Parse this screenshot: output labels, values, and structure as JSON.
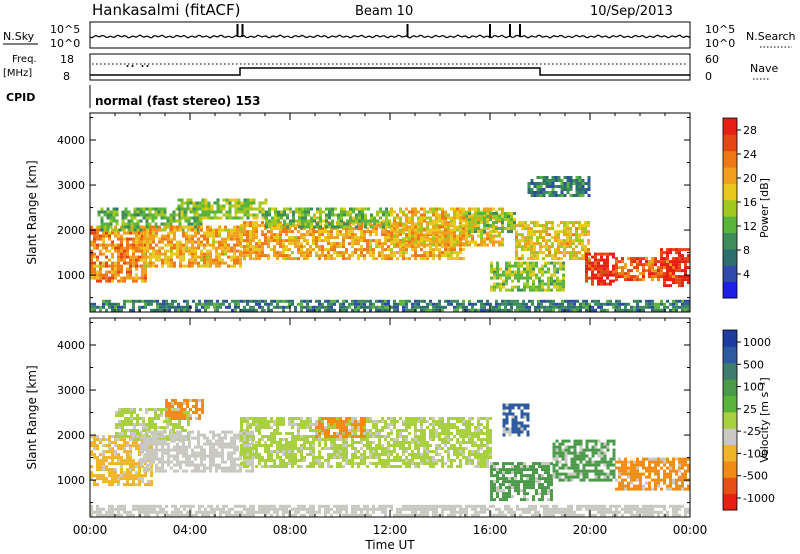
{
  "header": {
    "station": "Hankasalmi (fitACF)",
    "beam": "Beam 10",
    "date": "10/Sep/2013"
  },
  "status_panels": {
    "nsky_label": "N.Sky",
    "nsearch_label": "N.Search",
    "noise_ticks_left": [
      "10^5",
      "10^0"
    ],
    "noise_ticks_right": [
      "10^5",
      "10^0"
    ],
    "freq_label_1": "Freq.",
    "freq_label_2": "[MHz]",
    "freq_ticks": [
      "18",
      "8"
    ],
    "nave_label": "Nave",
    "nave_ticks": [
      "60",
      "0"
    ],
    "cpid_label": "CPID",
    "cpid_text": "normal (fast stereo) 153",
    "noise_spike_times_h": [
      5.9,
      6.1,
      12.7,
      16.0,
      16.8,
      17.2
    ],
    "freq_low_intervals_h": [
      [
        0,
        6.0
      ],
      [
        18.0,
        24
      ]
    ],
    "nave_dots_times_h": [
      1.5,
      1.7,
      2.1,
      2.3
    ]
  },
  "chart_data": [
    {
      "type": "heatmap",
      "title": "Power",
      "xlabel": "Time UT",
      "ylabel": "Slant Range [km]",
      "x_ticks": [
        "00:00",
        "04:00",
        "08:00",
        "12:00",
        "16:00",
        "20:00",
        "00:00"
      ],
      "x_range_h": [
        0,
        24
      ],
      "y_ticks": [
        1000,
        2000,
        3000,
        4000
      ],
      "ylim": [
        180,
        4600
      ],
      "colorbar_label": "Power [dB]",
      "colorbar_ticks": [
        4,
        8,
        12,
        16,
        20,
        24,
        28
      ],
      "colorbar_range": [
        0,
        30
      ],
      "colors": [
        "#1e1ee6",
        "#2f4aa8",
        "#2f6e6e",
        "#3e8c5a",
        "#5ab43c",
        "#a0c81e",
        "#e6c81e",
        "#f0a01e",
        "#f07814",
        "#e64614",
        "#e61e14"
      ],
      "echo_regions": [
        {
          "t0": 0.0,
          "t1": 2.2,
          "r0": 900,
          "r1": 2100,
          "value": 22
        },
        {
          "t0": 0.3,
          "t1": 4.5,
          "r0": 2000,
          "r1": 2500,
          "value": 12
        },
        {
          "t0": 2.0,
          "t1": 6.0,
          "r0": 1200,
          "r1": 2100,
          "value": 20
        },
        {
          "t0": 3.5,
          "t1": 7.0,
          "r0": 2300,
          "r1": 2700,
          "value": 14
        },
        {
          "t0": 6.0,
          "t1": 15.0,
          "r0": 1400,
          "r1": 2200,
          "value": 20
        },
        {
          "t0": 7.0,
          "t1": 12.0,
          "r0": 2100,
          "r1": 2500,
          "value": 13
        },
        {
          "t0": 12.0,
          "t1": 16.5,
          "r0": 1700,
          "r1": 2500,
          "value": 19
        },
        {
          "t0": 15.0,
          "t1": 17.0,
          "r0": 2000,
          "r1": 2400,
          "value": 14
        },
        {
          "t0": 16.0,
          "t1": 19.0,
          "r0": 700,
          "r1": 1300,
          "value": 14
        },
        {
          "t0": 17.0,
          "t1": 20.0,
          "r0": 1400,
          "r1": 2200,
          "value": 18
        },
        {
          "t0": 17.5,
          "t1": 20.0,
          "r0": 2800,
          "r1": 3200,
          "value": 8
        },
        {
          "t0": 19.8,
          "t1": 21.0,
          "r0": 800,
          "r1": 1500,
          "value": 28
        },
        {
          "t0": 21.0,
          "t1": 23.5,
          "r0": 900,
          "r1": 1400,
          "value": 24
        },
        {
          "t0": 22.8,
          "t1": 24.0,
          "r0": 800,
          "r1": 1600,
          "value": 29
        },
        {
          "t0": 0.0,
          "t1": 24.0,
          "r0": 200,
          "r1": 450,
          "value": 8
        }
      ]
    },
    {
      "type": "heatmap",
      "title": "Velocity",
      "xlabel": "Time UT",
      "ylabel": "Slant Range [km]",
      "x_ticks": [
        "00:00",
        "04:00",
        "08:00",
        "12:00",
        "16:00",
        "20:00",
        "00:00"
      ],
      "x_range_h": [
        0,
        24
      ],
      "y_ticks": [
        1000,
        2000,
        3000,
        4000
      ],
      "ylim": [
        180,
        4600
      ],
      "colorbar_label": "Velocity [m s⁻¹]",
      "colorbar_ticks": [
        "1000",
        "500",
        "100",
        "25",
        "-25",
        "-100",
        "-500",
        "-1000"
      ],
      "colors": [
        "#1e3ca0",
        "#2e5aa0",
        "#3e7c6e",
        "#4a9a4a",
        "#5ab43c",
        "#a8d040",
        "#c8c8c0",
        "#f0b428",
        "#f08c14",
        "#e65014",
        "#e61e14"
      ],
      "echo_regions": [
        {
          "t0": 0.0,
          "t1": 2.5,
          "r0": 900,
          "r1": 2000,
          "value": "-100"
        },
        {
          "t0": 1.0,
          "t1": 4.0,
          "r0": 1900,
          "r1": 2600,
          "value": "25"
        },
        {
          "t0": 2.0,
          "t1": 6.5,
          "r0": 1200,
          "r1": 2100,
          "value": "-25"
        },
        {
          "t0": 3.0,
          "t1": 4.5,
          "r0": 2400,
          "r1": 2800,
          "value": "-500"
        },
        {
          "t0": 6.0,
          "t1": 16.0,
          "r0": 1300,
          "r1": 2400,
          "value": "25"
        },
        {
          "t0": 9.0,
          "t1": 11.0,
          "r0": 2000,
          "r1": 2400,
          "value": "-500"
        },
        {
          "t0": 16.0,
          "t1": 18.5,
          "r0": 600,
          "r1": 1400,
          "value": "100"
        },
        {
          "t0": 16.5,
          "t1": 17.5,
          "r0": 2000,
          "r1": 2700,
          "value": "500"
        },
        {
          "t0": 18.5,
          "t1": 21.0,
          "r0": 1000,
          "r1": 1900,
          "value": "100"
        },
        {
          "t0": 21.0,
          "t1": 24.0,
          "r0": 800,
          "r1": 1500,
          "value": "-500"
        },
        {
          "t0": 0.0,
          "t1": 24.0,
          "r0": 200,
          "r1": 450,
          "value": "-25"
        }
      ]
    }
  ]
}
